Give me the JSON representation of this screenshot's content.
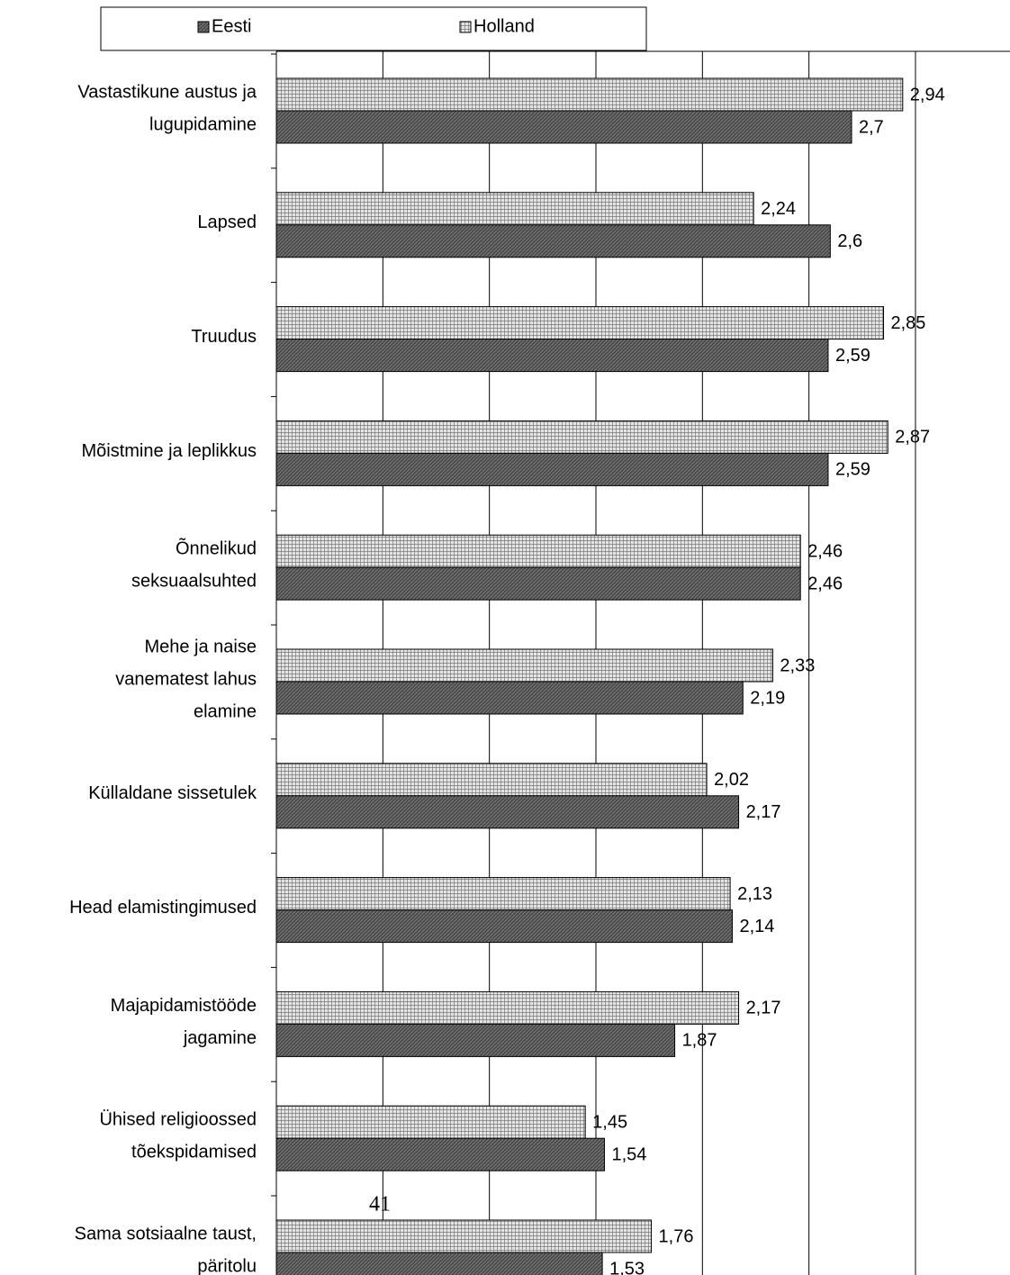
{
  "chart_data": {
    "type": "hbar",
    "categories": [
      "Vastastikune austus ja\nlugupidamine",
      "Lapsed",
      "Truudus",
      "Mõistmine ja leplikkus",
      "Õnnelikud\nseksuaalsuhted",
      "Mehe ja naise\nvanematest lahus\nelamine",
      "Küllaldane sissetulek",
      "Head elamistingimused",
      "Majapidamistööde\njagamine",
      "Ühised religioossed\ntõekspidamised",
      "Sama sotsiaalne taust,\npäritolu"
    ],
    "series": [
      {
        "name": "Eesti",
        "color": "#4a4a4a",
        "values": [
          2.7,
          2.6,
          2.59,
          2.59,
          2.46,
          2.19,
          2.17,
          2.14,
          1.87,
          1.54,
          1.53
        ],
        "value_labels": [
          "2,7",
          "2,6",
          "2,59",
          "2,59",
          "2,46",
          "2,19",
          "2,17",
          "2,14",
          "1,87",
          "1,54",
          "1,53"
        ]
      },
      {
        "name": "Holland",
        "color": "#e6e6e6",
        "values": [
          2.94,
          2.24,
          2.85,
          2.87,
          2.46,
          2.33,
          2.02,
          2.13,
          2.17,
          1.45,
          1.76
        ],
        "value_labels": [
          "2,94",
          "2,24",
          "2,85",
          "2,87",
          "2,46",
          "2,33",
          "2,02",
          "2,13",
          "2,17",
          "1,45",
          "1,76"
        ]
      }
    ],
    "xlim": [
      0,
      3
    ],
    "xticks": [
      0,
      0.5,
      1,
      1.5,
      2,
      2.5,
      3
    ],
    "grid": true,
    "page_number": "41"
  }
}
